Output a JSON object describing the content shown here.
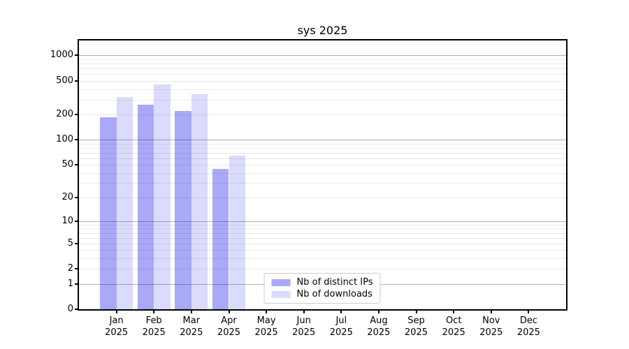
{
  "title": "sys 2025",
  "chart_data": {
    "type": "bar",
    "title": "sys 2025",
    "y_scale": "log10(1+v)",
    "ylim": [
      0,
      1500
    ],
    "grid": "horizontal",
    "legend_position": "lower center",
    "categories": [
      "Jan",
      "Feb",
      "Mar",
      "Apr",
      "May",
      "Jun",
      "Jul",
      "Aug",
      "Sep",
      "Oct",
      "Nov",
      "Dec"
    ],
    "category_year": "2025",
    "series": [
      {
        "name": "Nb of distinct IPs",
        "color": "rgba(10,10,235,0.35)",
        "values": [
          184,
          260,
          220,
          45,
          0,
          0,
          0,
          0,
          0,
          0,
          0,
          0
        ]
      },
      {
        "name": "Nb of downloads",
        "color": "rgba(10,10,235,0.145)",
        "values": [
          320,
          455,
          345,
          64,
          0,
          0,
          0,
          0,
          0,
          0,
          0,
          0
        ]
      }
    ],
    "y_tick_labels": [
      1000,
      500,
      200,
      100,
      50,
      20,
      10,
      5,
      2,
      1,
      0
    ],
    "grid_major_values": [
      1,
      10,
      100,
      1000
    ],
    "grid_minor_values": [
      2,
      3,
      4,
      5,
      6,
      7,
      8,
      9,
      20,
      30,
      40,
      50,
      60,
      70,
      80,
      90,
      200,
      300,
      400,
      500,
      600,
      700,
      800,
      900
    ],
    "grid_major_color": "#b0b0b0",
    "grid_minor_color": "#e9e9e9"
  }
}
